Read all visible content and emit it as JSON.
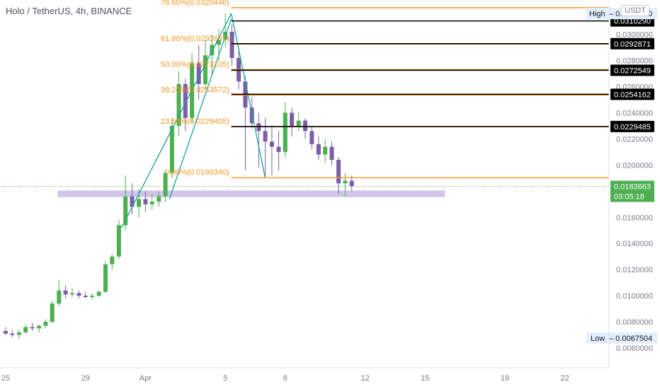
{
  "header": {
    "title": "Holo / TetherUS, 4h, BINANCE",
    "currency": "USDT"
  },
  "colors": {
    "up": "#26a69a",
    "down": "#ef5350",
    "candle_up": "#4caf50",
    "candle_down": "#7b5ea7",
    "fib": "#f7941d",
    "level": "#000000",
    "trendline": "#1aa39a",
    "zone": "#b39ddb",
    "last_price": "#4caf50"
  },
  "chart_data": {
    "type": "candlestick",
    "symbol": "Holo / TetherUS",
    "interval": "4h",
    "exchange": "BINANCE",
    "y_axis": {
      "min": 0.006,
      "max": 0.0322,
      "ticks": [
        "0.0060000",
        "0.0080000",
        "0.0100000",
        "0.0120000",
        "0.0140000",
        "0.0160000",
        "0.0180000",
        "0.0200000",
        "0.0220000",
        "0.0240000",
        "0.0260000",
        "0.0280000",
        "0.0300000"
      ]
    },
    "x_axis": {
      "ticks": [
        {
          "label": "25",
          "day": 0
        },
        {
          "label": "29",
          "day": 4
        },
        {
          "label": "Apr",
          "day": 7
        },
        {
          "label": "5",
          "day": 11
        },
        {
          "label": "8",
          "day": 14
        },
        {
          "label": "12",
          "day": 18
        },
        {
          "label": "15",
          "day": 21
        },
        {
          "label": "19",
          "day": 25
        },
        {
          "label": "22",
          "day": 28
        }
      ]
    },
    "candles": [
      {
        "day": 0.0,
        "o": 0.0073,
        "h": 0.0076,
        "l": 0.007,
        "c": 0.0071
      },
      {
        "day": 0.33,
        "o": 0.0071,
        "h": 0.0074,
        "l": 0.0068,
        "c": 0.007
      },
      {
        "day": 0.67,
        "o": 0.007,
        "h": 0.0074,
        "l": 0.0067,
        "c": 0.0072
      },
      {
        "day": 1.0,
        "o": 0.0072,
        "h": 0.0078,
        "l": 0.0071,
        "c": 0.0076
      },
      {
        "day": 1.33,
        "o": 0.0076,
        "h": 0.0079,
        "l": 0.0073,
        "c": 0.0075
      },
      {
        "day": 1.67,
        "o": 0.0075,
        "h": 0.0078,
        "l": 0.0072,
        "c": 0.0077
      },
      {
        "day": 2.0,
        "o": 0.0077,
        "h": 0.0082,
        "l": 0.0075,
        "c": 0.008
      },
      {
        "day": 2.33,
        "o": 0.008,
        "h": 0.0096,
        "l": 0.0079,
        "c": 0.0094
      },
      {
        "day": 2.67,
        "o": 0.0094,
        "h": 0.0112,
        "l": 0.0092,
        "c": 0.0104
      },
      {
        "day": 3.0,
        "o": 0.0104,
        "h": 0.0108,
        "l": 0.0098,
        "c": 0.0101
      },
      {
        "day": 3.33,
        "o": 0.0101,
        "h": 0.0106,
        "l": 0.0099,
        "c": 0.0102
      },
      {
        "day": 3.67,
        "o": 0.0102,
        "h": 0.0104,
        "l": 0.0098,
        "c": 0.01
      },
      {
        "day": 4.0,
        "o": 0.01,
        "h": 0.0103,
        "l": 0.0098,
        "c": 0.0099
      },
      {
        "day": 4.33,
        "o": 0.0099,
        "h": 0.0102,
        "l": 0.0097,
        "c": 0.01
      },
      {
        "day": 4.67,
        "o": 0.01,
        "h": 0.0104,
        "l": 0.0099,
        "c": 0.0103
      },
      {
        "day": 5.0,
        "o": 0.0103,
        "h": 0.0126,
        "l": 0.0102,
        "c": 0.0124
      },
      {
        "day": 5.33,
        "o": 0.0124,
        "h": 0.0132,
        "l": 0.012,
        "c": 0.013
      },
      {
        "day": 5.67,
        "o": 0.013,
        "h": 0.0158,
        "l": 0.0128,
        "c": 0.0154
      },
      {
        "day": 6.0,
        "o": 0.0154,
        "h": 0.0192,
        "l": 0.015,
        "c": 0.0176
      },
      {
        "day": 6.33,
        "o": 0.0176,
        "h": 0.0186,
        "l": 0.0162,
        "c": 0.0168
      },
      {
        "day": 6.67,
        "o": 0.0168,
        "h": 0.0182,
        "l": 0.016,
        "c": 0.0174
      },
      {
        "day": 7.0,
        "o": 0.0174,
        "h": 0.018,
        "l": 0.0164,
        "c": 0.017
      },
      {
        "day": 7.33,
        "o": 0.017,
        "h": 0.0178,
        "l": 0.0166,
        "c": 0.0172
      },
      {
        "day": 7.67,
        "o": 0.0172,
        "h": 0.018,
        "l": 0.0168,
        "c": 0.0176
      },
      {
        "day": 8.0,
        "o": 0.0176,
        "h": 0.0196,
        "l": 0.0172,
        "c": 0.0194
      },
      {
        "day": 8.33,
        "o": 0.0194,
        "h": 0.0236,
        "l": 0.019,
        "c": 0.023
      },
      {
        "day": 8.67,
        "o": 0.023,
        "h": 0.0272,
        "l": 0.0222,
        "c": 0.0262
      },
      {
        "day": 9.0,
        "o": 0.0262,
        "h": 0.0266,
        "l": 0.0226,
        "c": 0.0236
      },
      {
        "day": 9.33,
        "o": 0.0236,
        "h": 0.0286,
        "l": 0.0232,
        "c": 0.0278
      },
      {
        "day": 9.67,
        "o": 0.0278,
        "h": 0.0292,
        "l": 0.025,
        "c": 0.0262
      },
      {
        "day": 10.0,
        "o": 0.0262,
        "h": 0.0296,
        "l": 0.0258,
        "c": 0.0284
      },
      {
        "day": 10.33,
        "o": 0.0284,
        "h": 0.03,
        "l": 0.027,
        "c": 0.0292
      },
      {
        "day": 10.67,
        "o": 0.0292,
        "h": 0.0304,
        "l": 0.028,
        "c": 0.0296
      },
      {
        "day": 11.0,
        "o": 0.0296,
        "h": 0.0316,
        "l": 0.029,
        "c": 0.0302
      },
      {
        "day": 11.33,
        "o": 0.0302,
        "h": 0.0308,
        "l": 0.0276,
        "c": 0.0282
      },
      {
        "day": 11.67,
        "o": 0.0282,
        "h": 0.029,
        "l": 0.0258,
        "c": 0.0264
      },
      {
        "day": 12.0,
        "o": 0.0264,
        "h": 0.0268,
        "l": 0.0196,
        "c": 0.0244
      },
      {
        "day": 12.33,
        "o": 0.0244,
        "h": 0.0252,
        "l": 0.0228,
        "c": 0.0232
      },
      {
        "day": 12.67,
        "o": 0.0232,
        "h": 0.024,
        "l": 0.0198,
        "c": 0.0226
      },
      {
        "day": 13.0,
        "o": 0.0226,
        "h": 0.0236,
        "l": 0.019,
        "c": 0.0218
      },
      {
        "day": 13.33,
        "o": 0.0218,
        "h": 0.023,
        "l": 0.0192,
        "c": 0.0214
      },
      {
        "day": 13.67,
        "o": 0.0214,
        "h": 0.0226,
        "l": 0.0196,
        "c": 0.021
      },
      {
        "day": 14.0,
        "o": 0.021,
        "h": 0.0248,
        "l": 0.0206,
        "c": 0.024
      },
      {
        "day": 14.33,
        "o": 0.024,
        "h": 0.0244,
        "l": 0.0222,
        "c": 0.023
      },
      {
        "day": 14.67,
        "o": 0.023,
        "h": 0.024,
        "l": 0.0226,
        "c": 0.0234
      },
      {
        "day": 15.0,
        "o": 0.0234,
        "h": 0.0236,
        "l": 0.022,
        "c": 0.0226
      },
      {
        "day": 15.33,
        "o": 0.0226,
        "h": 0.023,
        "l": 0.0212,
        "c": 0.0216
      },
      {
        "day": 15.67,
        "o": 0.0216,
        "h": 0.0222,
        "l": 0.0204,
        "c": 0.0208
      },
      {
        "day": 16.0,
        "o": 0.0208,
        "h": 0.022,
        "l": 0.0202,
        "c": 0.0214
      },
      {
        "day": 16.33,
        "o": 0.0214,
        "h": 0.0218,
        "l": 0.02,
        "c": 0.0204
      },
      {
        "day": 16.67,
        "o": 0.0204,
        "h": 0.0206,
        "l": 0.0178,
        "c": 0.0186
      },
      {
        "day": 17.0,
        "o": 0.0186,
        "h": 0.0194,
        "l": 0.0176,
        "c": 0.0188
      },
      {
        "day": 17.33,
        "o": 0.0188,
        "h": 0.0192,
        "l": 0.018,
        "c": 0.0184
      }
    ],
    "fib_levels": [
      {
        "label": "78.60%(0.0320446)",
        "value": 0.0320446
      },
      {
        "label": "61.80%(0.0292637)",
        "value": 0.0292637
      },
      {
        "label": "50.00%(0.0273105)",
        "value": 0.0273105
      },
      {
        "label": "38.20%(0.0253572)",
        "value": 0.0253572
      },
      {
        "label": "23.60%(0.0229405)",
        "value": 0.0229405
      },
      {
        "label": "0.00%(0.0190340)",
        "value": 0.019034
      }
    ],
    "price_levels": [
      {
        "value": 0.031029,
        "label": "0.0310290"
      },
      {
        "value": 0.0292871,
        "label": "0.0292871"
      },
      {
        "value": 0.0272549,
        "label": "0.0272549"
      },
      {
        "value": 0.0254162,
        "label": "0.0254162"
      },
      {
        "value": 0.0229485,
        "label": "0.0229485"
      }
    ],
    "high": {
      "label": "High",
      "value": "0.0316000"
    },
    "low": {
      "label": "Low",
      "value": "0.0067504"
    },
    "last_price": {
      "value": "0.0183663",
      "countdown": "03:05:18",
      "numeric": 0.0183663
    },
    "support_zone": {
      "from_day": 2.6,
      "to_day": 22.0,
      "low": 0.01755,
      "high": 0.01805
    },
    "trendlines": [
      {
        "x1": 5.8,
        "y1": 0.0152,
        "x2": 11.3,
        "y2": 0.0316
      },
      {
        "x1": 11.3,
        "y1": 0.0316,
        "x2": 13.0,
        "y2": 0.019
      },
      {
        "x1": 8.2,
        "y1": 0.0174,
        "x2": 11.3,
        "y2": 0.0312
      }
    ]
  }
}
